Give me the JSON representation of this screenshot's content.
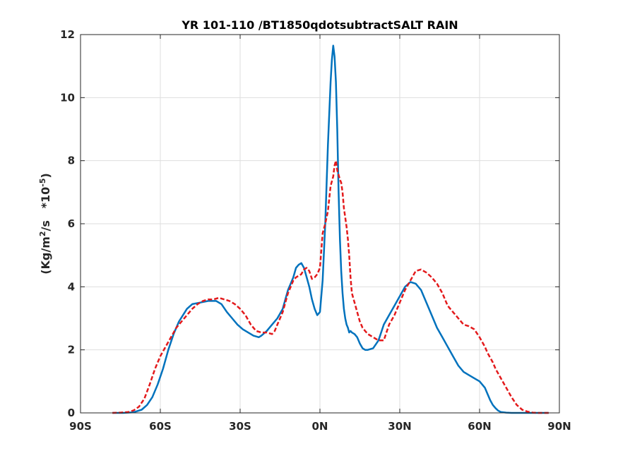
{
  "chart_data": {
    "type": "line",
    "title": "YR 101-110 /BT1850qdotsubtractSALT RAIN",
    "xlabel": "",
    "ylabel": {
      "prefix": "(Kg/m",
      "sup1": "2",
      "mid": "/s   *10",
      "sup2": "-5",
      "suffix": ")"
    },
    "xlim": [
      -90,
      90
    ],
    "ylim": [
      0,
      12
    ],
    "xticks": [
      -90,
      -60,
      -30,
      0,
      30,
      60,
      90
    ],
    "xtick_labels": [
      "90S",
      "60S",
      "30S",
      "0N",
      "30N",
      "60N",
      "90N"
    ],
    "yticks": [
      0,
      2,
      4,
      6,
      8,
      10,
      12
    ],
    "ytick_labels": [
      "0",
      "2",
      "4",
      "6",
      "8",
      "10",
      "12"
    ],
    "grid": true,
    "legend": "none",
    "series": [
      {
        "color": "#0072BD",
        "style": "solid",
        "x": [
          -78,
          -74,
          -70,
          -67,
          -65,
          -63,
          -61,
          -59,
          -57,
          -55,
          -53,
          -50,
          -48,
          -45,
          -42,
          -39,
          -37,
          -35,
          -33,
          -31,
          -29,
          -27,
          -25,
          -23,
          -22,
          -20,
          -18,
          -16,
          -14,
          -13,
          -12,
          -11,
          -10,
          -9,
          -8,
          -7,
          -6,
          -5,
          -4,
          -3,
          -2,
          -1,
          0,
          1,
          2,
          3,
          4,
          4.5,
          5,
          5.5,
          6,
          6.5,
          7,
          7.5,
          8,
          8.5,
          9,
          9.5,
          10,
          10.5,
          11,
          11.5,
          12,
          13,
          14,
          15,
          16,
          17,
          18,
          20,
          22,
          24,
          26,
          28,
          30,
          32,
          34,
          36,
          38,
          40,
          42,
          44,
          46,
          48,
          50,
          52,
          54,
          56,
          58,
          60,
          62,
          63,
          64,
          65,
          66,
          67,
          68,
          70,
          72,
          74,
          76,
          78,
          80,
          82,
          84,
          86
        ],
        "y": [
          0.0,
          0.0,
          0.02,
          0.1,
          0.25,
          0.5,
          0.9,
          1.4,
          2.0,
          2.5,
          2.9,
          3.3,
          3.45,
          3.5,
          3.55,
          3.55,
          3.45,
          3.2,
          3.0,
          2.8,
          2.65,
          2.55,
          2.45,
          2.4,
          2.45,
          2.6,
          2.8,
          3.0,
          3.3,
          3.6,
          3.9,
          4.1,
          4.3,
          4.6,
          4.7,
          4.75,
          4.6,
          4.3,
          4.0,
          3.6,
          3.3,
          3.1,
          3.2,
          4.2,
          6.0,
          8.5,
          10.5,
          11.2,
          11.65,
          11.3,
          10.5,
          9.0,
          7.0,
          5.5,
          4.5,
          3.8,
          3.3,
          3.0,
          2.8,
          2.7,
          2.55,
          2.6,
          2.55,
          2.5,
          2.4,
          2.2,
          2.05,
          2.0,
          2.0,
          2.05,
          2.3,
          2.8,
          3.1,
          3.4,
          3.7,
          4.0,
          4.15,
          4.1,
          3.9,
          3.5,
          3.1,
          2.7,
          2.4,
          2.1,
          1.8,
          1.5,
          1.3,
          1.2,
          1.1,
          1.0,
          0.8,
          0.6,
          0.4,
          0.25,
          0.15,
          0.07,
          0.03,
          0.01,
          0.0,
          0.0,
          0.0,
          0.0,
          0.0,
          0.0,
          0.0,
          0.0
        ]
      },
      {
        "color": "#E31A1C",
        "style": "dashed",
        "x": [
          -78,
          -75,
          -72,
          -70,
          -68,
          -66,
          -64,
          -62,
          -60,
          -58,
          -56,
          -54,
          -52,
          -50,
          -48,
          -46,
          -44,
          -42,
          -40,
          -38,
          -36,
          -34,
          -32,
          -30,
          -28,
          -26,
          -24,
          -22,
          -20,
          -18,
          -17,
          -16,
          -15,
          -14,
          -13,
          -12,
          -11,
          -10,
          -9,
          -8,
          -7,
          -6,
          -5,
          -4,
          -3,
          -2,
          -1,
          0,
          1,
          2,
          3,
          4,
          5,
          5.5,
          6,
          6.5,
          7,
          7.5,
          8,
          8.5,
          9,
          9.5,
          10,
          10.5,
          11,
          11.5,
          12,
          13,
          14,
          15,
          16,
          17,
          18,
          20,
          22,
          24,
          26,
          28,
          30,
          32,
          34,
          36,
          38,
          40,
          42,
          44,
          46,
          48,
          50,
          52,
          54,
          56,
          58,
          60,
          62,
          63,
          64,
          65,
          66,
          68,
          70,
          72,
          74,
          76,
          78,
          80,
          82,
          84,
          86
        ],
        "y": [
          0.0,
          0.01,
          0.03,
          0.08,
          0.2,
          0.45,
          0.9,
          1.4,
          1.8,
          2.1,
          2.4,
          2.7,
          2.9,
          3.1,
          3.3,
          3.45,
          3.55,
          3.6,
          3.6,
          3.65,
          3.6,
          3.55,
          3.45,
          3.3,
          3.1,
          2.8,
          2.6,
          2.55,
          2.55,
          2.5,
          2.6,
          2.8,
          3.0,
          3.2,
          3.5,
          3.8,
          4.0,
          4.2,
          4.3,
          4.35,
          4.4,
          4.55,
          4.6,
          4.5,
          4.25,
          4.3,
          4.4,
          4.6,
          5.7,
          6.0,
          6.4,
          7.2,
          7.5,
          7.85,
          8.0,
          7.7,
          7.55,
          7.4,
          7.3,
          7.0,
          6.5,
          6.2,
          5.9,
          5.5,
          5.0,
          4.3,
          3.8,
          3.5,
          3.2,
          2.9,
          2.7,
          2.6,
          2.5,
          2.4,
          2.3,
          2.3,
          2.8,
          3.1,
          3.5,
          3.9,
          4.2,
          4.5,
          4.55,
          4.45,
          4.3,
          4.1,
          3.8,
          3.4,
          3.2,
          3.0,
          2.8,
          2.75,
          2.65,
          2.4,
          2.1,
          1.9,
          1.75,
          1.6,
          1.4,
          1.1,
          0.8,
          0.5,
          0.25,
          0.1,
          0.04,
          0.01,
          0.0,
          0.0,
          0.0
        ]
      }
    ]
  }
}
